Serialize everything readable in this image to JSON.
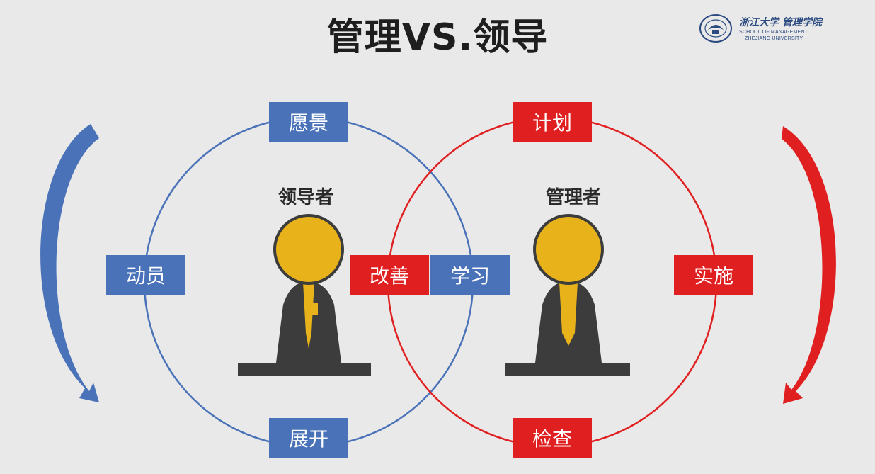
{
  "title": "管理VS.领导",
  "logo": {
    "cn": "浙江大学 管理学院",
    "en_line1": "SCHOOL OF MANAGEMENT",
    "en_line2": "ZHEJIANG UNIVERSITY"
  },
  "leader": {
    "label": "领导者",
    "cycle": [
      "愿景",
      "学习",
      "展开",
      "动员"
    ]
  },
  "manager": {
    "label": "管理者",
    "cycle": [
      "计划",
      "实施",
      "检查",
      "改善"
    ]
  },
  "colors": {
    "leader_blue": "#4a72b8",
    "manager_red": "#e02020",
    "figure_head": "#e8b21a",
    "figure_body": "#3c3c3c"
  },
  "icons": [
    "seal-icon",
    "leader-figure-icon",
    "manager-figure-icon",
    "cycle-arrow-icon"
  ]
}
